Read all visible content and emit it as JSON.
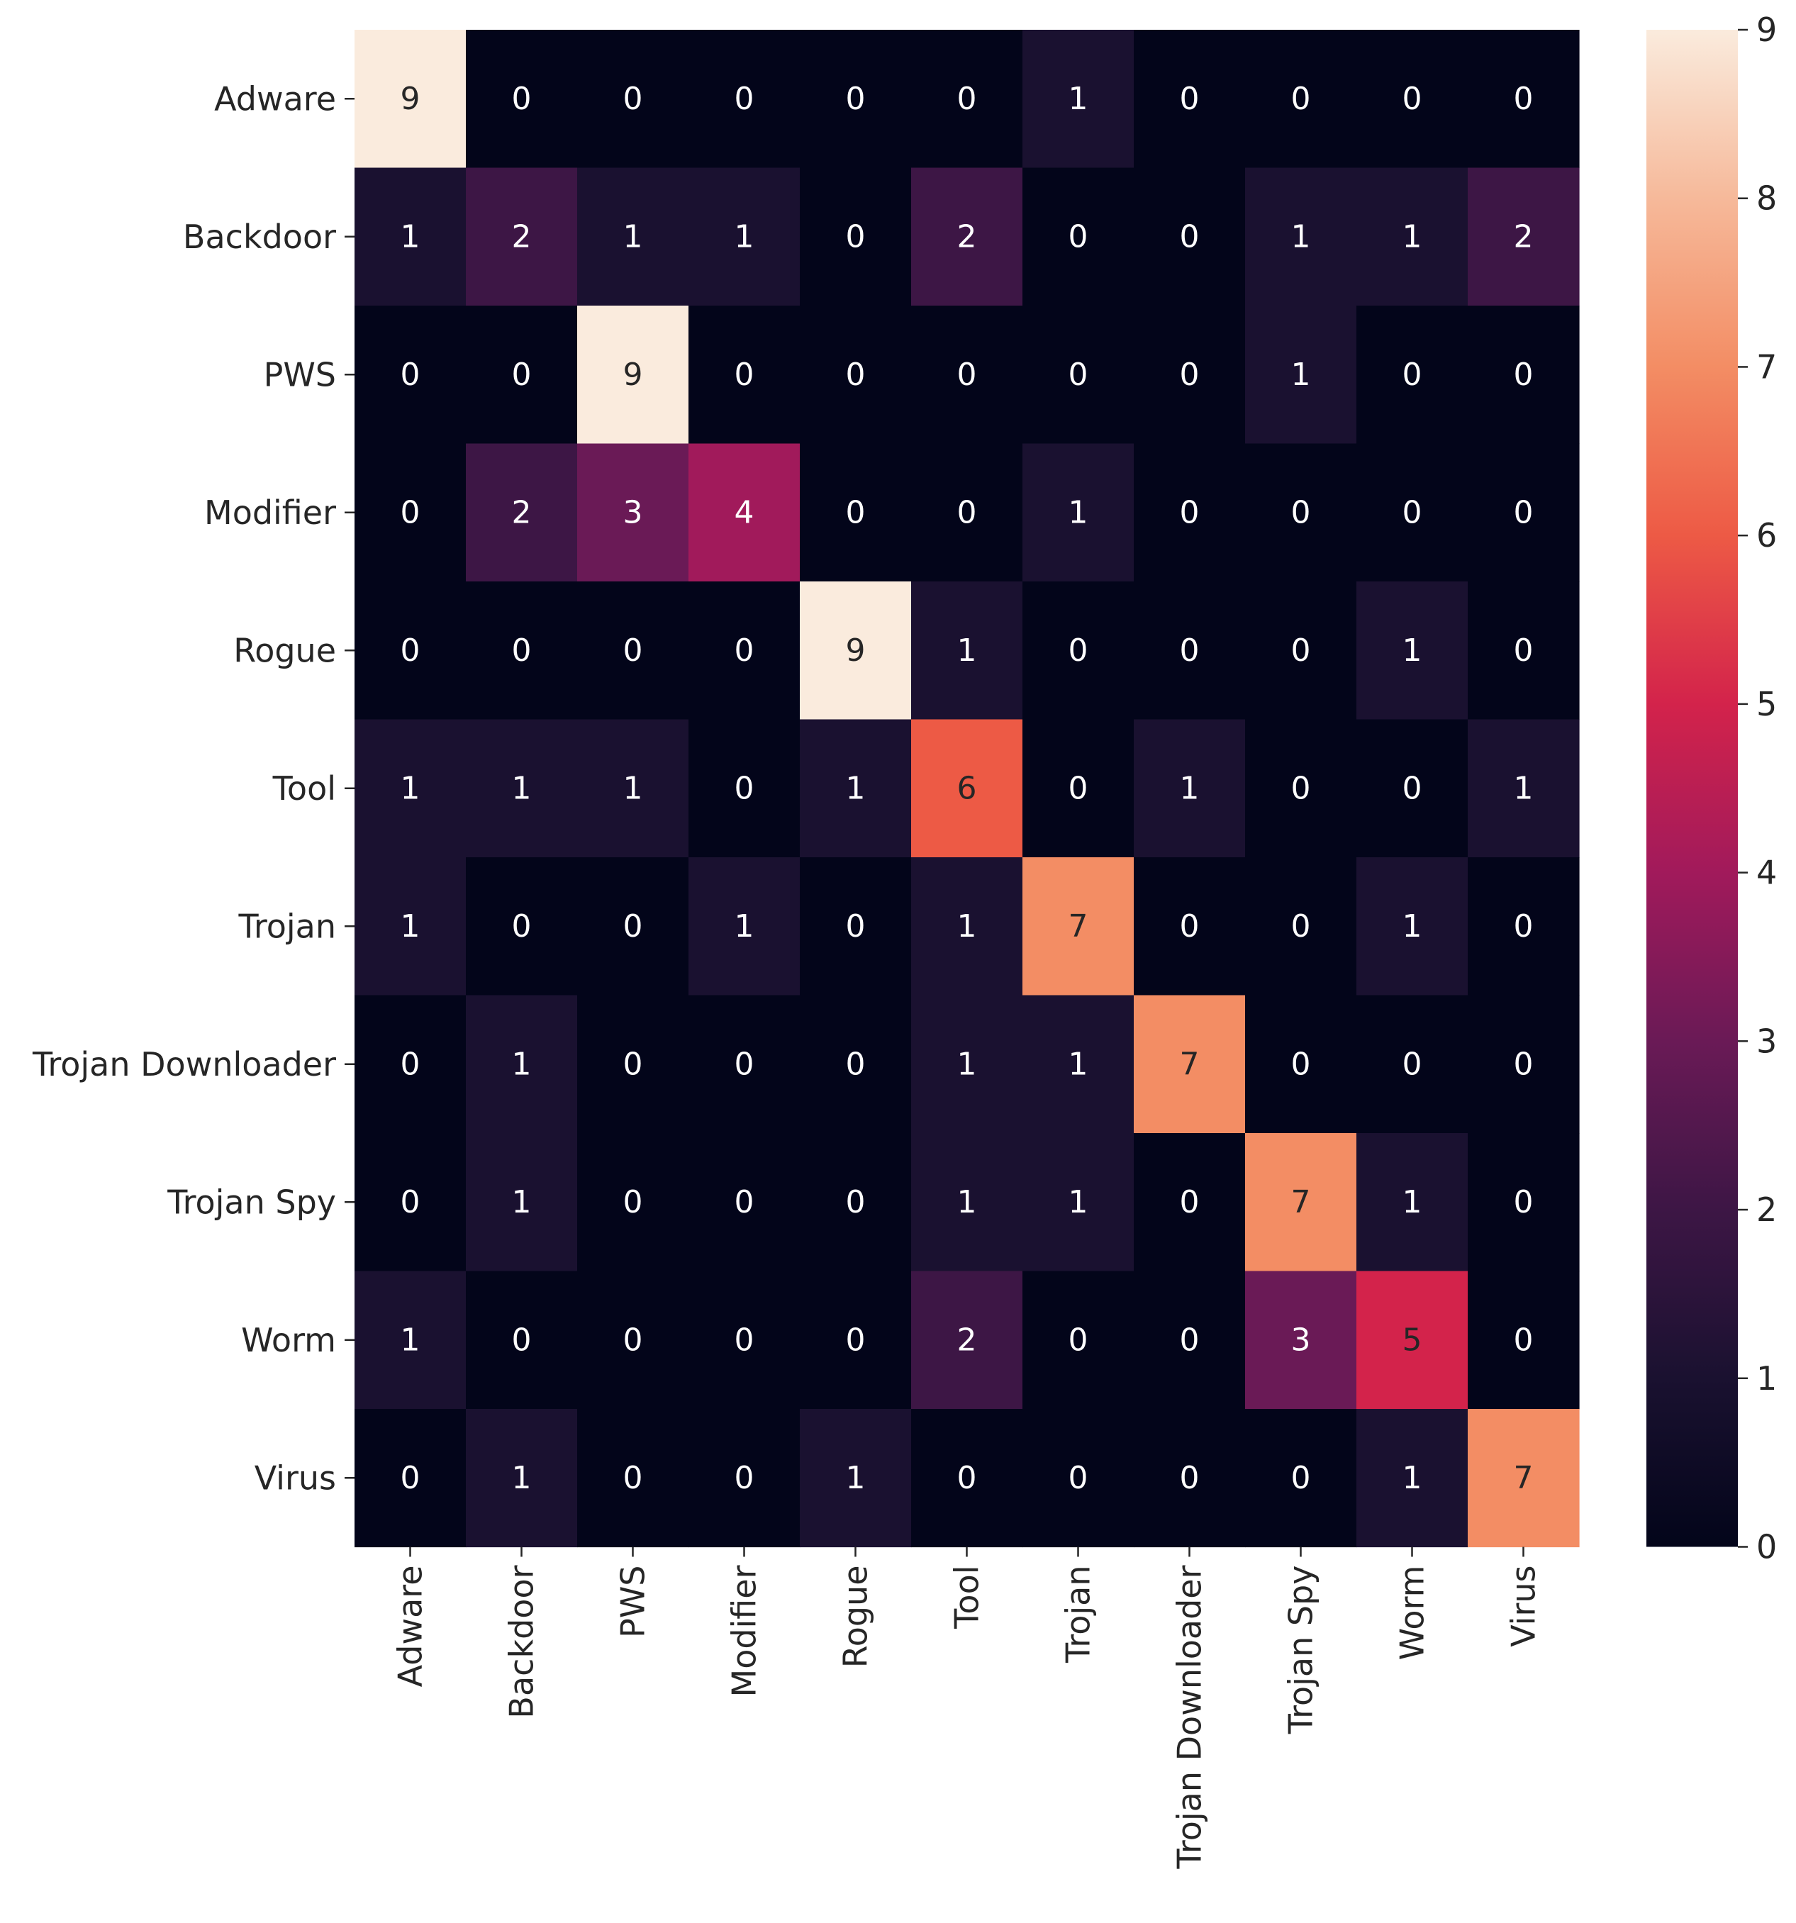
{
  "chart_data": {
    "type": "heatmap",
    "title": "",
    "xlabel": "",
    "ylabel": "",
    "row_labels": [
      "Adware",
      "Backdoor",
      "PWS",
      "Modifier",
      "Rogue",
      "Tool",
      "Trojan",
      "Trojan Downloader",
      "Trojan Spy",
      "Worm",
      "Virus"
    ],
    "col_labels": [
      "Adware",
      "Backdoor",
      "PWS",
      "Modifier",
      "Rogue",
      "Tool",
      "Trojan",
      "Trojan Downloader",
      "Trojan Spy",
      "Worm",
      "Virus"
    ],
    "values": [
      [
        9,
        0,
        0,
        0,
        0,
        0,
        1,
        0,
        0,
        0,
        0
      ],
      [
        1,
        2,
        1,
        1,
        0,
        2,
        0,
        0,
        1,
        1,
        2
      ],
      [
        0,
        0,
        9,
        0,
        0,
        0,
        0,
        0,
        1,
        0,
        0
      ],
      [
        0,
        2,
        3,
        4,
        0,
        0,
        1,
        0,
        0,
        0,
        0
      ],
      [
        0,
        0,
        0,
        0,
        9,
        1,
        0,
        0,
        0,
        1,
        0
      ],
      [
        1,
        1,
        1,
        0,
        1,
        6,
        0,
        1,
        0,
        0,
        1
      ],
      [
        1,
        0,
        0,
        1,
        0,
        1,
        7,
        0,
        0,
        1,
        0
      ],
      [
        0,
        1,
        0,
        0,
        0,
        1,
        1,
        7,
        0,
        0,
        0
      ],
      [
        0,
        1,
        0,
        0,
        0,
        1,
        1,
        0,
        7,
        1,
        0
      ],
      [
        1,
        0,
        0,
        0,
        0,
        2,
        0,
        0,
        3,
        5,
        0
      ],
      [
        0,
        1,
        0,
        0,
        1,
        0,
        0,
        0,
        0,
        1,
        7
      ]
    ],
    "colorbar": {
      "range": [
        0,
        9
      ],
      "ticks": [
        "0",
        "1",
        "2",
        "3",
        "4",
        "5",
        "6",
        "7",
        "8",
        "9"
      ],
      "colormap": "rocket",
      "stops": [
        "#03051a",
        "#1a1130",
        "#3d1645",
        "#6a1a56",
        "#a11a5b",
        "#d3234b",
        "#ed5a45",
        "#f38d64",
        "#f6b99a",
        "#faebdd"
      ]
    }
  }
}
